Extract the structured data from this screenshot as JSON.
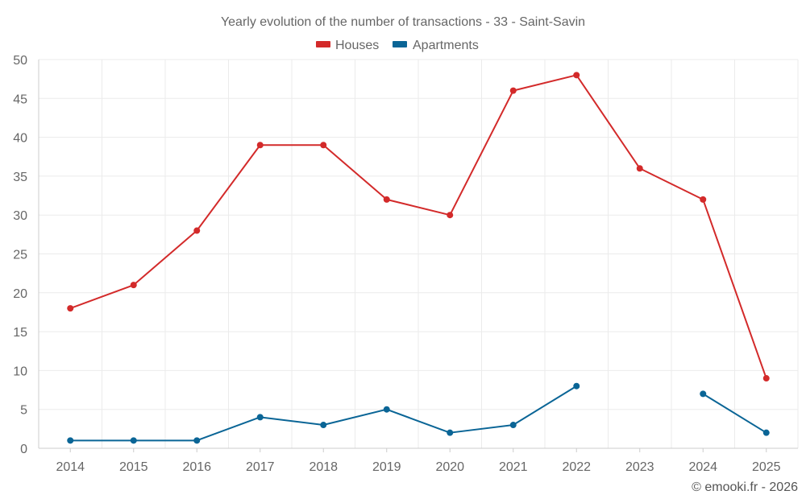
{
  "chart_data": {
    "type": "line",
    "title": "Yearly evolution of the number of transactions - 33 - Saint-Savin",
    "categories": [
      "2014",
      "2015",
      "2016",
      "2017",
      "2018",
      "2019",
      "2020",
      "2021",
      "2022",
      "2023",
      "2024",
      "2025"
    ],
    "series": [
      {
        "name": "Houses",
        "color": "#d32a2a",
        "values": [
          18,
          21,
          28,
          39,
          39,
          32,
          30,
          46,
          48,
          36,
          32,
          9
        ]
      },
      {
        "name": "Apartments",
        "color": "#0a6596",
        "values": [
          1,
          1,
          1,
          4,
          3,
          5,
          2,
          3,
          8,
          null,
          7,
          2
        ]
      }
    ],
    "ylim": [
      0,
      50
    ],
    "yticks": [
      0,
      5,
      10,
      15,
      20,
      25,
      30,
      35,
      40,
      45,
      50
    ],
    "xlabel": "",
    "ylabel": "",
    "grid": true,
    "legend_position": "top-center"
  },
  "credit": "© emooki.fr - 2026"
}
